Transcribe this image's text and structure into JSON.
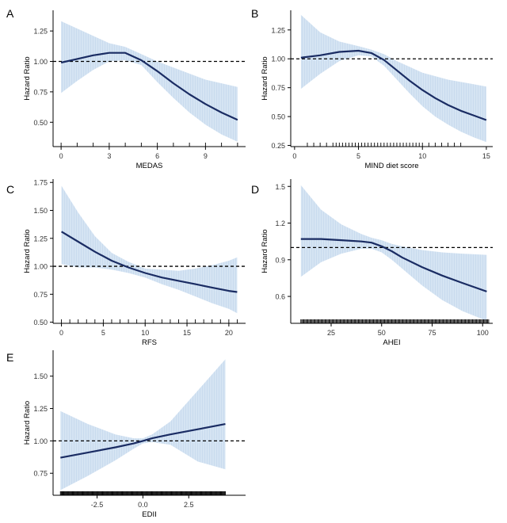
{
  "figure": {
    "colors": {
      "line": "#1a2c63",
      "ribbon_fill": "#d5e4f3",
      "ribbon_hatch": "#c2d6ec",
      "axis": "#000000",
      "reference": "#000000"
    }
  },
  "chart_data": [
    {
      "id": "A",
      "type": "line",
      "panel_label": "A",
      "title": "",
      "xlabel": "MEDAS",
      "ylabel": "Hazard Ratio",
      "xlim": [
        -0.5,
        11.5
      ],
      "ylim": [
        0.3,
        1.42
      ],
      "xticks": [
        0,
        3,
        6,
        9
      ],
      "yticks": [
        0.5,
        0.75,
        1.0,
        1.25
      ],
      "ytick_labels": [
        "0.50",
        "0.75",
        "1.00",
        "1.25"
      ],
      "reference_y": 1.0,
      "rug": [
        0,
        1,
        2,
        3,
        4,
        5,
        6,
        7,
        8,
        9,
        10,
        11
      ],
      "series": [
        {
          "name": "Hazard Ratio",
          "x": [
            0,
            1,
            2,
            3,
            4,
            5,
            6,
            7,
            8,
            9,
            10,
            11
          ],
          "y": [
            0.99,
            1.02,
            1.05,
            1.07,
            1.07,
            1.01,
            0.92,
            0.82,
            0.73,
            0.65,
            0.58,
            0.52
          ],
          "lower": [
            0.74,
            0.84,
            0.93,
            1.0,
            1.01,
            0.97,
            0.83,
            0.7,
            0.58,
            0.48,
            0.4,
            0.34
          ],
          "upper": [
            1.33,
            1.27,
            1.21,
            1.15,
            1.12,
            1.06,
            1.0,
            0.95,
            0.9,
            0.85,
            0.82,
            0.79
          ]
        }
      ]
    },
    {
      "id": "B",
      "type": "line",
      "panel_label": "B",
      "title": "",
      "xlabel": "MIND diet score",
      "ylabel": "Hazard Ratio",
      "xlim": [
        -0.3,
        15.5
      ],
      "ylim": [
        0.24,
        1.42
      ],
      "xticks": [
        0,
        5,
        10,
        15
      ],
      "yticks": [
        0.25,
        0.5,
        0.75,
        1.0,
        1.25
      ],
      "ytick_labels": [
        "0.25",
        "0.50",
        "0.75",
        "1.00",
        "1.25"
      ],
      "reference_y": 1.0,
      "rug": [
        1,
        1.5,
        2,
        2.5,
        3,
        3.25,
        3.5,
        3.75,
        4,
        4.25,
        4.5,
        4.75,
        5,
        5.25,
        5.5,
        5.75,
        6,
        6.25,
        6.5,
        6.75,
        7,
        7.25,
        7.5,
        7.75,
        8,
        8.25,
        8.5,
        8.75,
        9,
        9.25,
        9.5,
        9.75,
        10,
        10.5,
        11,
        11.5,
        12,
        12.5,
        13
      ],
      "series": [
        {
          "name": "Hazard Ratio",
          "x": [
            0.5,
            2,
            3.5,
            5,
            6,
            7,
            8,
            9,
            10,
            11,
            12,
            13,
            14,
            15
          ],
          "y": [
            1.01,
            1.03,
            1.06,
            1.07,
            1.05,
            0.99,
            0.9,
            0.81,
            0.73,
            0.66,
            0.6,
            0.55,
            0.51,
            0.47
          ],
          "lower": [
            0.74,
            0.87,
            0.98,
            1.03,
            1.02,
            0.94,
            0.82,
            0.7,
            0.59,
            0.5,
            0.43,
            0.37,
            0.32,
            0.28
          ],
          "upper": [
            1.38,
            1.23,
            1.15,
            1.11,
            1.08,
            1.04,
            0.98,
            0.93,
            0.88,
            0.85,
            0.82,
            0.8,
            0.78,
            0.76
          ]
        }
      ]
    },
    {
      "id": "C",
      "type": "line",
      "panel_label": "C",
      "title": "",
      "xlabel": "RFS",
      "ylabel": "Hazard Ratio",
      "xlim": [
        -1,
        22
      ],
      "ylim": [
        0.49,
        1.78
      ],
      "xticks": [
        0,
        5,
        10,
        15,
        20
      ],
      "yticks": [
        0.5,
        0.75,
        1.0,
        1.25,
        1.5,
        1.75
      ],
      "ytick_labels": [
        "0.50",
        "0.75",
        "1.00",
        "1.25",
        "1.50",
        "1.75"
      ],
      "reference_y": 1.0,
      "rug": [
        0,
        1,
        2,
        3,
        4,
        5,
        6,
        7,
        8,
        9,
        10,
        11,
        12,
        13,
        14,
        15,
        16,
        17,
        18,
        19,
        20,
        21
      ],
      "series": [
        {
          "name": "Hazard Ratio",
          "x": [
            0,
            2,
            4,
            6,
            8,
            10,
            12,
            14,
            16,
            18,
            20,
            21
          ],
          "y": [
            1.31,
            1.22,
            1.13,
            1.05,
            0.99,
            0.94,
            0.9,
            0.87,
            0.84,
            0.81,
            0.78,
            0.77
          ],
          "lower": [
            1.02,
            0.99,
            0.99,
            0.97,
            0.94,
            0.9,
            0.84,
            0.79,
            0.73,
            0.67,
            0.62,
            0.58
          ],
          "upper": [
            1.72,
            1.48,
            1.27,
            1.12,
            1.04,
            0.98,
            0.97,
            0.96,
            0.98,
            1.01,
            1.05,
            1.08
          ]
        }
      ]
    },
    {
      "id": "D",
      "type": "line",
      "panel_label": "D",
      "title": "",
      "xlabel": "AHEI",
      "ylabel": "Hazard Ratio",
      "xlim": [
        5,
        105
      ],
      "ylim": [
        0.38,
        1.56
      ],
      "xticks": [
        25,
        50,
        75,
        100
      ],
      "yticks": [
        0.6,
        0.9,
        1.2,
        1.5
      ],
      "ytick_labels": [
        "0.6",
        "0.9",
        "1.2",
        "1.5"
      ],
      "reference_y": 1.0,
      "rug_range": [
        10,
        103
      ],
      "rug_step": 0.5,
      "series": [
        {
          "name": "Hazard Ratio",
          "x": [
            10,
            20,
            30,
            40,
            45,
            50,
            55,
            60,
            70,
            80,
            90,
            102
          ],
          "y": [
            1.07,
            1.07,
            1.06,
            1.05,
            1.04,
            1.01,
            0.97,
            0.92,
            0.84,
            0.77,
            0.71,
            0.64
          ],
          "lower": [
            0.76,
            0.88,
            0.95,
            0.99,
            0.99,
            0.96,
            0.9,
            0.83,
            0.69,
            0.57,
            0.48,
            0.4
          ],
          "upper": [
            1.51,
            1.31,
            1.19,
            1.11,
            1.08,
            1.06,
            1.03,
            1.01,
            0.98,
            0.96,
            0.95,
            0.94
          ]
        }
      ]
    },
    {
      "id": "E",
      "type": "line",
      "panel_label": "E",
      "title": "",
      "xlabel": "EDII",
      "ylabel": "Hazard Ratio",
      "xlim": [
        -4.9,
        5.6
      ],
      "ylim": [
        0.58,
        1.7
      ],
      "xticks": [
        -2.5,
        0.0,
        2.5
      ],
      "xtick_labels": [
        "-2.5",
        "0.0",
        "2.5"
      ],
      "yticks": [
        0.75,
        1.0,
        1.25,
        1.5
      ],
      "ytick_labels": [
        "0.75",
        "1.00",
        "1.25",
        "1.50"
      ],
      "reference_y": 1.0,
      "rug_range": [
        -4.5,
        4.5
      ],
      "rug_step": 0.04,
      "series": [
        {
          "name": "Hazard Ratio",
          "x": [
            -4.5,
            -3,
            -1.5,
            -0.5,
            0,
            0.5,
            1.5,
            3,
            4.5
          ],
          "y": [
            0.87,
            0.91,
            0.95,
            0.98,
            1.0,
            1.02,
            1.05,
            1.09,
            1.13
          ],
          "lower": [
            0.62,
            0.73,
            0.85,
            0.94,
            0.98,
            0.99,
            0.97,
            0.84,
            0.78
          ],
          "upper": [
            1.23,
            1.13,
            1.05,
            1.02,
            1.02,
            1.05,
            1.15,
            1.39,
            1.63
          ]
        }
      ]
    }
  ]
}
